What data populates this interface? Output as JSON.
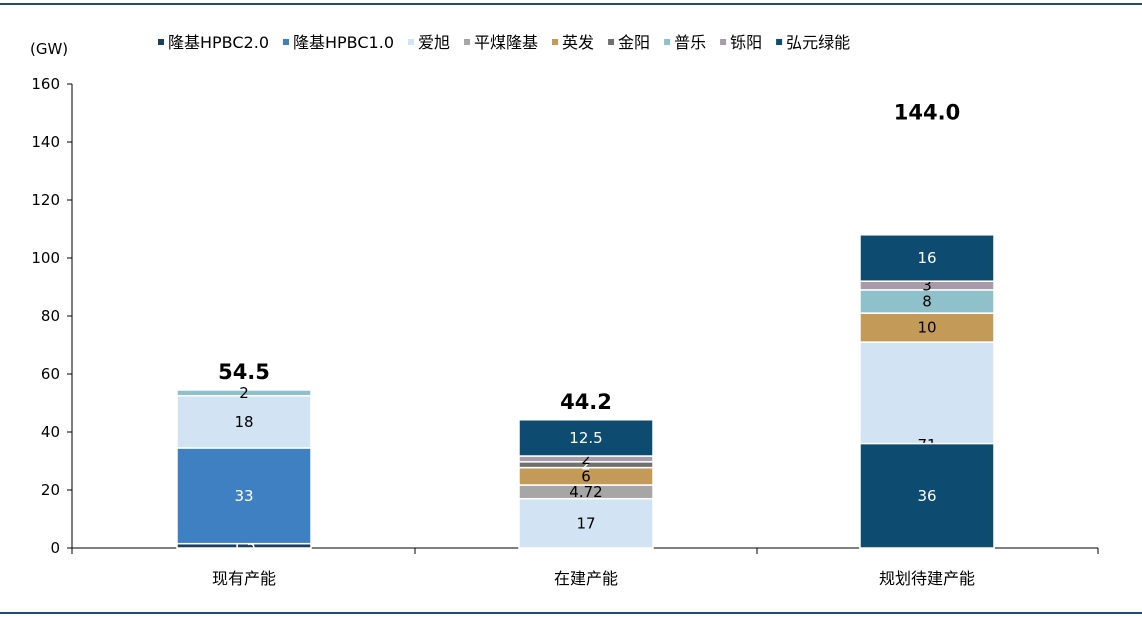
{
  "chart_data": {
    "type": "bar",
    "stacked": true,
    "ylabel": "(GW)",
    "ylim": [
      0,
      160
    ],
    "yticks": [
      0,
      20,
      40,
      60,
      80,
      100,
      120,
      140,
      160
    ],
    "categories": [
      "现有产能",
      "在建产能",
      "规划待建产能"
    ],
    "totals": [
      "54.5",
      "44.2",
      "144.0"
    ],
    "legend_position": "top",
    "grid": false,
    "series": [
      {
        "name": "隆基HPBC2.0",
        "color": "#1b3f5c",
        "values": [
          1.5,
          0,
          0
        ],
        "labels": [
          "1.5",
          "",
          ""
        ]
      },
      {
        "name": "隆基HPBC1.0",
        "color": "#3f80c2",
        "values": [
          33,
          0,
          0
        ],
        "labels": [
          "33",
          "",
          ""
        ]
      },
      {
        "name": "爱旭",
        "color": "#d2e3f3",
        "values": [
          18,
          17,
          71
        ],
        "labels": [
          "18",
          "17",
          "71"
        ]
      },
      {
        "name": "平煤隆基",
        "color": "#a6a6a6",
        "values": [
          0,
          4.72,
          0
        ],
        "labels": [
          "",
          "4.72",
          ""
        ]
      },
      {
        "name": "英发",
        "color": "#c49a58",
        "values": [
          0,
          6,
          10
        ],
        "labels": [
          "",
          "6",
          "10"
        ]
      },
      {
        "name": "金阳",
        "color": "#707070",
        "values": [
          0,
          2,
          0
        ],
        "labels": [
          "",
          "2",
          ""
        ]
      },
      {
        "name": "普乐",
        "color": "#8fc1ca",
        "values": [
          2,
          0,
          8
        ],
        "labels": [
          "2",
          "",
          "8"
        ]
      },
      {
        "name": "铄阳",
        "color": "#a89aa8",
        "values": [
          0,
          2,
          3
        ],
        "labels": [
          "",
          "2",
          "3"
        ]
      },
      {
        "name": "弘元绿能",
        "color": "#0d4c70",
        "values": [
          0,
          12.5,
          52
        ],
        "labels": [
          "",
          "12.5",
          ""
        ]
      }
    ],
    "bottom_segment_overrides": [
      {
        "category_index": 2,
        "series_index": 8,
        "values": [
          36,
          16
        ],
        "labels": [
          "36",
          "16"
        ]
      }
    ]
  }
}
